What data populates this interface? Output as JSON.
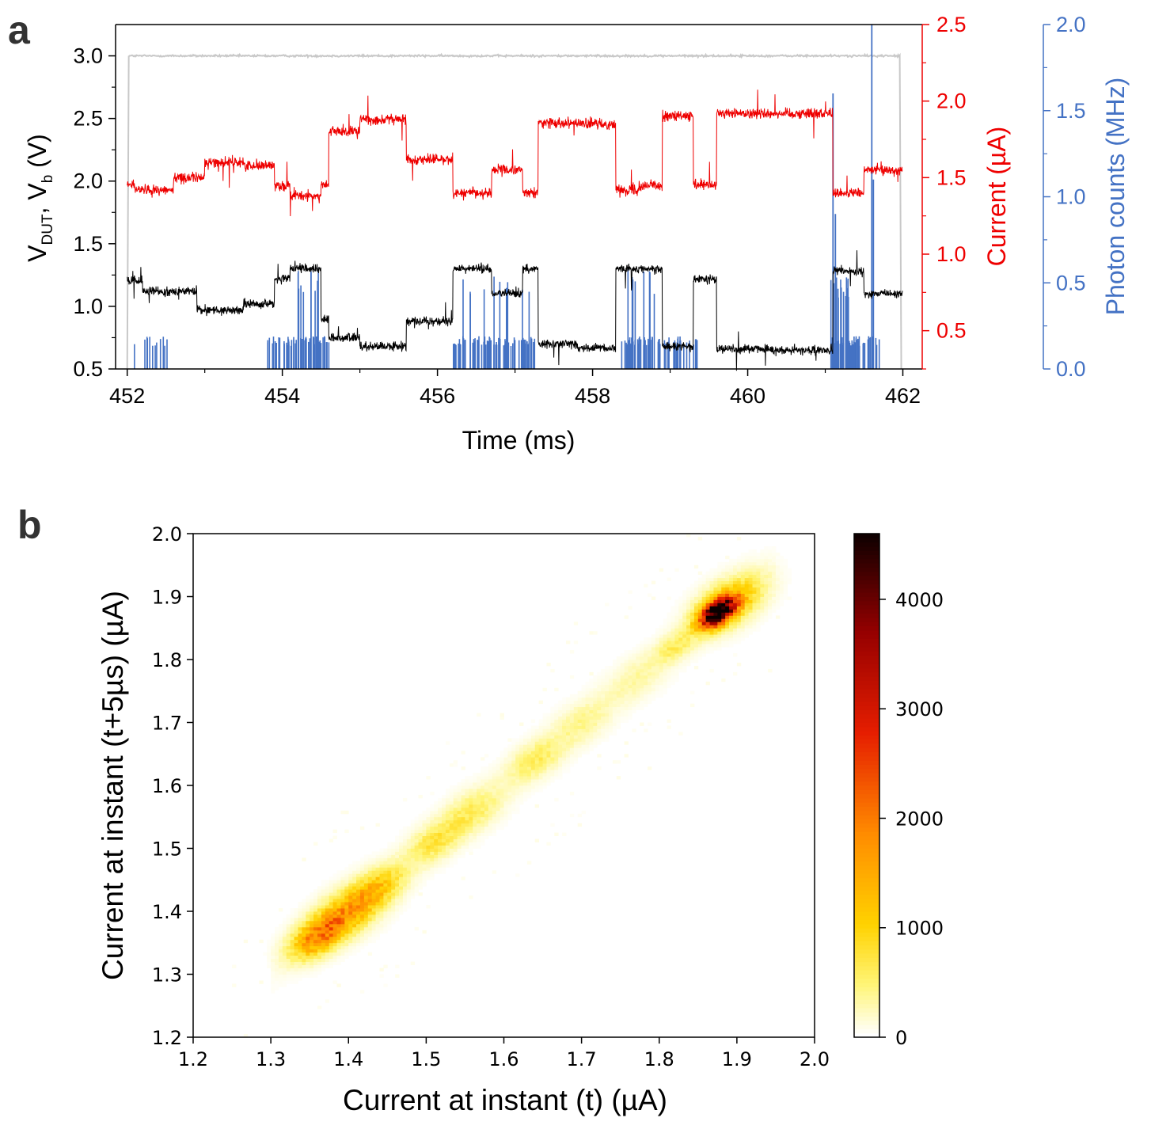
{
  "figure": {
    "panel_a_label": "a",
    "panel_b_label": "b"
  },
  "colors": {
    "vdut": "#000000",
    "vb": "#c8c8c8",
    "current": "#ee0000",
    "photon": "#4472c4"
  },
  "chart_data": [
    {
      "id": "panel-a",
      "type": "line",
      "xlabel": "Time (ms)",
      "xlim": [
        451.85,
        462.25
      ],
      "xticks": [
        452,
        454,
        456,
        458,
        460,
        462
      ],
      "ylabel_left_main": "V",
      "ylabel_left_sub1": "DUT",
      "ylabel_left_mid": ", V",
      "ylabel_left_sub2": "b",
      "ylabel_left_unit": " (V)",
      "ylim_left": [
        0.5,
        3.25
      ],
      "yticks_left": [
        "0.5",
        "1.0",
        "1.5",
        "2.0",
        "2.5",
        "3.0"
      ],
      "ylabel_right1": "Current (µA)",
      "ylim_right1": [
        0.25,
        2.5
      ],
      "yticks_right1": [
        "0.5",
        "1.0",
        "1.5",
        "2.0",
        "2.5"
      ],
      "ylabel_right2": "Photon counts (MHz)",
      "ylim_right2": [
        0,
        2.0
      ],
      "yticks_right2": [
        "0.0",
        "0.5",
        "1.0",
        "1.5",
        "2.0"
      ],
      "series": [
        {
          "name": "Vb",
          "axis": "left",
          "noise": 0.008,
          "points": [
            [
              452.0,
              0.5
            ],
            [
              452.02,
              3.0
            ],
            [
              461.96,
              3.0
            ],
            [
              461.98,
              0.5
            ]
          ]
        },
        {
          "name": "Current",
          "axis": "right1",
          "noise": 0.035,
          "segments": [
            [
              452.0,
              452.1,
              1.45
            ],
            [
              452.1,
              452.6,
              1.42
            ],
            [
              452.6,
              453.0,
              1.5
            ],
            [
              453.0,
              453.5,
              1.6
            ],
            [
              453.5,
              453.9,
              1.58
            ],
            [
              453.9,
              454.1,
              1.45
            ],
            [
              454.1,
              454.5,
              1.38
            ],
            [
              454.5,
              454.6,
              1.45
            ],
            [
              454.6,
              455.0,
              1.8
            ],
            [
              455.0,
              455.6,
              1.88
            ],
            [
              455.6,
              456.2,
              1.62
            ],
            [
              456.2,
              456.7,
              1.4
            ],
            [
              456.7,
              457.1,
              1.55
            ],
            [
              457.1,
              457.3,
              1.4
            ],
            [
              457.3,
              457.8,
              1.86
            ],
            [
              457.8,
              458.3,
              1.85
            ],
            [
              458.3,
              458.6,
              1.42
            ],
            [
              458.6,
              458.9,
              1.45
            ],
            [
              458.9,
              459.3,
              1.9
            ],
            [
              459.3,
              459.6,
              1.45
            ],
            [
              459.6,
              460.3,
              1.92
            ],
            [
              460.3,
              461.1,
              1.92
            ],
            [
              461.1,
              461.5,
              1.4
            ],
            [
              461.5,
              462.0,
              1.55
            ]
          ]
        },
        {
          "name": "VDUT",
          "axis": "left",
          "noise": 0.035,
          "segments": [
            [
              452.0,
              452.2,
              1.2
            ],
            [
              452.2,
              452.9,
              1.12
            ],
            [
              452.9,
              453.5,
              0.97
            ],
            [
              453.5,
              453.9,
              1.02
            ],
            [
              453.9,
              454.1,
              1.22
            ],
            [
              454.1,
              454.5,
              1.3
            ],
            [
              454.5,
              454.6,
              0.9
            ],
            [
              454.6,
              455.0,
              0.75
            ],
            [
              455.0,
              455.6,
              0.68
            ],
            [
              455.6,
              456.2,
              0.88
            ],
            [
              456.2,
              456.7,
              1.3
            ],
            [
              456.7,
              457.1,
              1.1
            ],
            [
              457.1,
              457.3,
              1.3
            ],
            [
              457.3,
              457.8,
              0.7
            ],
            [
              457.8,
              458.3,
              0.67
            ],
            [
              458.3,
              458.9,
              1.3
            ],
            [
              458.9,
              459.3,
              0.68
            ],
            [
              459.3,
              459.6,
              1.22
            ],
            [
              459.6,
              460.3,
              0.66
            ],
            [
              460.3,
              461.1,
              0.65
            ],
            [
              461.1,
              461.5,
              1.28
            ],
            [
              461.5,
              462.0,
              1.1
            ]
          ]
        },
        {
          "name": "Photon counts",
          "axis": "right2",
          "bursts": [
            [
              452.05,
              452.6,
              12,
              0.19
            ],
            [
              453.8,
              454.6,
              60,
              0.19
            ],
            [
              454.2,
              454.5,
              10,
              0.6
            ],
            [
              456.2,
              457.3,
              70,
              0.19
            ],
            [
              456.3,
              457.2,
              10,
              0.6
            ],
            [
              458.35,
              459.35,
              60,
              0.19
            ],
            [
              458.4,
              458.8,
              8,
              0.6
            ],
            [
              461.05,
              461.7,
              50,
              0.19
            ],
            [
              461.05,
              461.3,
              15,
              0.55
            ]
          ],
          "spikes": [
            [
              461.1,
              1.6
            ],
            [
              461.6,
              2.0
            ],
            [
              461.13,
              0.9
            ],
            [
              461.62,
              1.1
            ]
          ]
        }
      ]
    },
    {
      "id": "panel-b",
      "type": "heatmap",
      "xlabel": "Current at instant (t) (µA)",
      "ylabel": "Current at instant (t+5µs) (µA)",
      "xlim": [
        1.2,
        2.0
      ],
      "ylim": [
        1.2,
        2.0
      ],
      "xticks": [
        "1.2",
        "1.3",
        "1.4",
        "1.5",
        "1.6",
        "1.7",
        "1.8",
        "1.9",
        "2.0"
      ],
      "yticks": [
        "1.2",
        "1.3",
        "1.4",
        "1.5",
        "1.6",
        "1.7",
        "1.8",
        "1.9",
        "2.0"
      ],
      "bins": 160,
      "colorbar": {
        "min": 0,
        "max": 4600,
        "ticks": [
          "0",
          "1000",
          "2000",
          "3000",
          "4000"
        ]
      },
      "clusters": [
        {
          "center": [
            1.36,
            1.36
          ],
          "spread": 0.018,
          "peak": 1700
        },
        {
          "center": [
            1.4,
            1.4
          ],
          "spread": 0.022,
          "peak": 1400
        },
        {
          "center": [
            1.44,
            1.44
          ],
          "spread": 0.018,
          "peak": 900
        },
        {
          "center": [
            1.51,
            1.51
          ],
          "spread": 0.018,
          "peak": 650
        },
        {
          "center": [
            1.56,
            1.56
          ],
          "spread": 0.02,
          "peak": 550
        },
        {
          "center": [
            1.64,
            1.64
          ],
          "spread": 0.018,
          "peak": 550
        },
        {
          "center": [
            1.7,
            1.7
          ],
          "spread": 0.02,
          "peak": 350
        },
        {
          "center": [
            1.77,
            1.77
          ],
          "spread": 0.02,
          "peak": 280
        },
        {
          "center": [
            1.82,
            1.82
          ],
          "spread": 0.014,
          "peak": 500
        },
        {
          "center": [
            1.875,
            1.875
          ],
          "spread": 0.012,
          "peak": 4600
        },
        {
          "center": [
            1.89,
            1.89
          ],
          "spread": 0.022,
          "peak": 1300
        }
      ]
    }
  ]
}
